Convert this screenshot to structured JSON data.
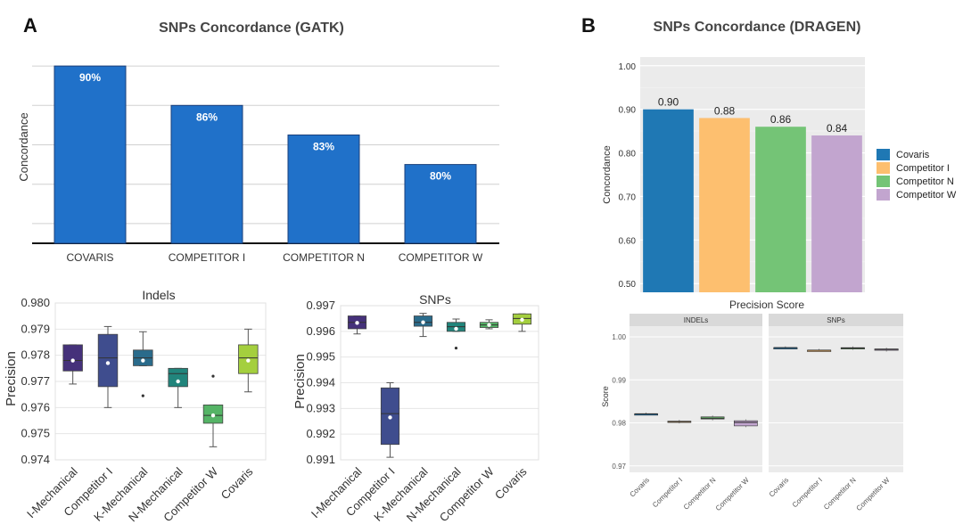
{
  "panel_labels": {
    "a": "A",
    "b": "B"
  },
  "chart_data": [
    {
      "id": "gatk",
      "type": "bar",
      "title": "SNPs Concordance (GATK)",
      "xlabel": "",
      "ylabel": "Concordance",
      "categories": [
        "COVARIS",
        "COMPETITOR I",
        "COMPETITOR N",
        "COMPETITOR W"
      ],
      "values": [
        90,
        86,
        83,
        80
      ],
      "value_labels": [
        "90%",
        "86%",
        "83%",
        "80%"
      ],
      "ylim": [
        72,
        92
      ],
      "gridlines": [
        74,
        78,
        82,
        86,
        90
      ],
      "color": "#2071c9"
    },
    {
      "id": "indels",
      "type": "box",
      "title": "Indels",
      "ylabel": "Precision",
      "categories": [
        "I-Mechanical",
        "Competitor I",
        "K-Mechanical",
        "N-Mechanical",
        "Competitor W",
        "Covaris"
      ],
      "colors": [
        "#45317a",
        "#3f4d8e",
        "#2a6b8b",
        "#21857c",
        "#55b466",
        "#a4cf3e"
      ],
      "yticks": [
        "0.974",
        "0.975",
        "0.976",
        "0.977",
        "0.978",
        "0.979",
        "0.980"
      ],
      "ylim": [
        0.974,
        0.98
      ],
      "boxes": [
        {
          "min": 0.9769,
          "q1": 0.9774,
          "median": 0.9778,
          "q3": 0.9784,
          "max": 0.9784,
          "mean": 0.9778,
          "outliers": []
        },
        {
          "min": 0.976,
          "q1": 0.9768,
          "median": 0.9779,
          "q3": 0.9788,
          "max": 0.9791,
          "mean": 0.9777,
          "outliers": []
        },
        {
          "min": 0.9776,
          "q1": 0.9776,
          "median": 0.9779,
          "q3": 0.9782,
          "max": 0.9789,
          "mean": 0.9778,
          "outliers": [
            0.97645
          ]
        },
        {
          "min": 0.976,
          "q1": 0.9768,
          "median": 0.9773,
          "q3": 0.9775,
          "max": 0.9775,
          "mean": 0.977,
          "outliers": []
        },
        {
          "min": 0.9745,
          "q1": 0.9754,
          "median": 0.9757,
          "q3": 0.9761,
          "max": 0.9761,
          "mean": 0.9757,
          "outliers": [
            0.9772
          ]
        },
        {
          "min": 0.9766,
          "q1": 0.9773,
          "median": 0.9779,
          "q3": 0.9784,
          "max": 0.979,
          "mean": 0.9778,
          "outliers": []
        }
      ]
    },
    {
      "id": "snps_box",
      "type": "box",
      "title": "SNPs",
      "ylabel": "Precision",
      "categories": [
        "I-Mechanical",
        "Competitor I",
        "K-Mechanical",
        "N-Mechanical",
        "Competitor W",
        "Covaris"
      ],
      "colors": [
        "#45317a",
        "#3f4d8e",
        "#2a6b8b",
        "#21857c",
        "#55b466",
        "#a4cf3e"
      ],
      "yticks": [
        "0.991",
        "0.992",
        "0.993",
        "0.994",
        "0.995",
        "0.996",
        "0.997"
      ],
      "ylim": [
        0.991,
        0.997
      ],
      "boxes": [
        {
          "min": 0.9959,
          "q1": 0.9961,
          "median": 0.99635,
          "q3": 0.9966,
          "max": 0.9966,
          "mean": 0.99633,
          "outliers": []
        },
        {
          "min": 0.9911,
          "q1": 0.9916,
          "median": 0.9928,
          "q3": 0.9938,
          "max": 0.994,
          "mean": 0.99265,
          "outliers": []
        },
        {
          "min": 0.9958,
          "q1": 0.9962,
          "median": 0.99635,
          "q3": 0.9966,
          "max": 0.9967,
          "mean": 0.99635,
          "outliers": []
        },
        {
          "min": 0.996,
          "q1": 0.996,
          "median": 0.99618,
          "q3": 0.99635,
          "max": 0.99648,
          "mean": 0.9961,
          "outliers": [
            0.99535
          ]
        },
        {
          "min": 0.9961,
          "q1": 0.99615,
          "median": 0.99625,
          "q3": 0.99635,
          "max": 0.99645,
          "mean": 0.99625,
          "outliers": []
        },
        {
          "min": 0.996,
          "q1": 0.99628,
          "median": 0.9965,
          "q3": 0.99668,
          "max": 0.99668,
          "mean": 0.99645,
          "outliers": []
        }
      ]
    },
    {
      "id": "dragen",
      "type": "bar",
      "title": "SNPs Concordance (DRAGEN)",
      "xlabel": "",
      "ylabel": "Concordance",
      "categories": [
        "Covaris",
        "Competitor I",
        "Competitor N",
        "Competitor W"
      ],
      "values": [
        0.9,
        0.88,
        0.86,
        0.84
      ],
      "value_labels": [
        "0.90",
        "0.88",
        "0.86",
        "0.84"
      ],
      "yticks": [
        "0.50",
        "0.60",
        "0.70",
        "0.80",
        "0.90",
        "1.00"
      ],
      "ylim": [
        0.48,
        1.02
      ],
      "legend": [
        "Covaris",
        "Competitor I",
        "Competitor N",
        "Competitor W"
      ],
      "colors": [
        "#1f78b4",
        "#fdbf6f",
        "#74c476",
        "#c2a5cf"
      ]
    },
    {
      "id": "precision_score",
      "type": "box",
      "title": "Precision Score",
      "ylabel": "Score",
      "facets": [
        "INDELs",
        "SNPs"
      ],
      "categories": [
        "Covaris",
        "Competitor I",
        "Competitor N",
        "Competitor W"
      ],
      "colors": [
        "#1f78b4",
        "#fdbf6f",
        "#74c476",
        "#c2a5cf"
      ],
      "yticks": [
        "0.97",
        "0.98",
        "0.99",
        "1.00"
      ],
      "ylim": [
        0.9685,
        1.0025
      ],
      "facet_boxes": [
        [
          {
            "q1": 0.9821,
            "median": 0.9821,
            "q3": 0.9821
          },
          {
            "q1": 0.9802,
            "median": 0.9803,
            "q3": 0.9804
          },
          {
            "q1": 0.9809,
            "median": 0.9811,
            "q3": 0.9814
          },
          {
            "q1": 0.9793,
            "median": 0.9801,
            "q3": 0.9805
          }
        ],
        [
          {
            "q1": 0.9975,
            "median": 0.9975,
            "q3": 0.9975
          },
          {
            "q1": 0.9969,
            "median": 0.9969,
            "q3": 0.9969
          },
          {
            "q1": 0.9973,
            "median": 0.9974,
            "q3": 0.9975
          },
          {
            "q1": 0.9969,
            "median": 0.9971,
            "q3": 0.9972
          }
        ]
      ]
    }
  ]
}
